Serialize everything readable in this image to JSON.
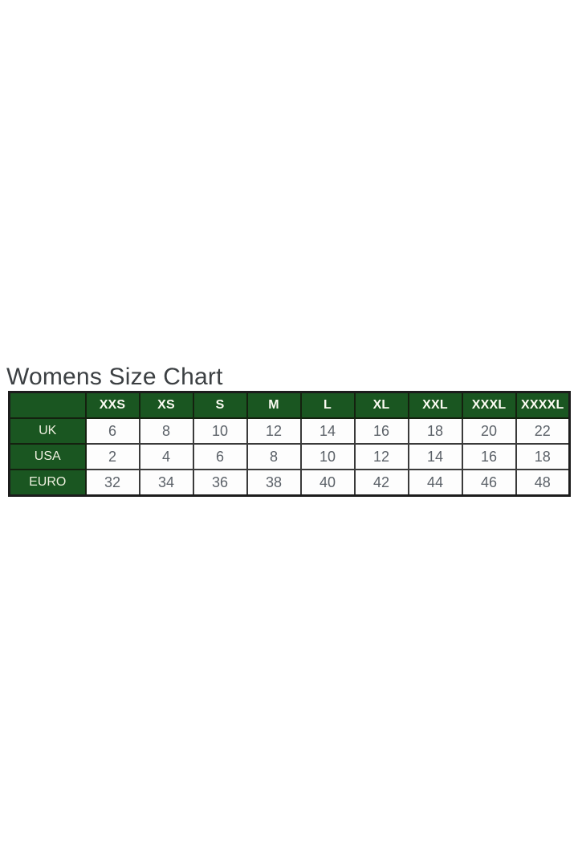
{
  "page": {
    "title": "Womens Size Chart"
  },
  "colors": {
    "page_bg": "#ffffff",
    "header_green": "#1a5621",
    "outer_border": "#1c1c1c",
    "inner_border": "#3a3a3a",
    "title_text": "#3c4043",
    "header_text": "#fbfbf2",
    "row_label_text": "#eef0df",
    "cell_text": "#5b6168",
    "cell_bg": "#fdfdfd"
  },
  "chart_data": {
    "type": "table",
    "title": "Womens Size Chart",
    "columns": [
      "",
      "XXS",
      "XS",
      "S",
      "M",
      "L",
      "XL",
      "XXL",
      "XXXL",
      "XXXXL"
    ],
    "rows": [
      {
        "label": "UK",
        "values": [
          "6",
          "8",
          "10",
          "12",
          "14",
          "16",
          "18",
          "20",
          "22"
        ]
      },
      {
        "label": "USA",
        "values": [
          "2",
          "4",
          "6",
          "8",
          "10",
          "12",
          "14",
          "16",
          "18"
        ]
      },
      {
        "label": "EURO",
        "values": [
          "32",
          "34",
          "36",
          "38",
          "40",
          "42",
          "44",
          "46",
          "48"
        ]
      }
    ]
  }
}
